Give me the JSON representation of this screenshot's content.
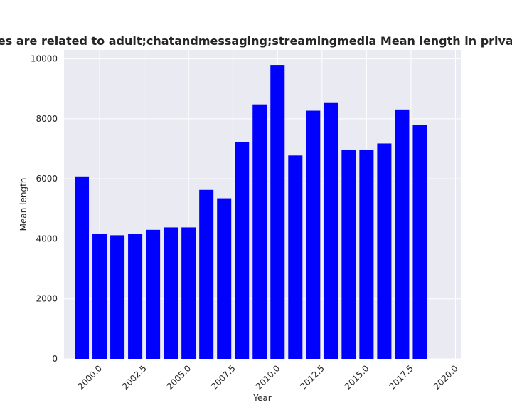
{
  "chart_data": {
    "type": "bar",
    "title": "Categories are related to adult;chatandmessaging;streamingmedia Mean length in privacy policies",
    "xlabel": "Year",
    "ylabel": "Mean length",
    "x": [
      1999,
      2000,
      2001,
      2002,
      2003,
      2004,
      2005,
      2006,
      2007,
      2008,
      2009,
      2010,
      2011,
      2012,
      2013,
      2014,
      2015,
      2016,
      2017,
      2018
    ],
    "values": [
      6080,
      4160,
      4120,
      4160,
      4300,
      4380,
      4380,
      5630,
      5350,
      7220,
      8480,
      9800,
      6780,
      8270,
      8550,
      6960,
      6960,
      7180,
      8310,
      7790
    ],
    "xlim": [
      1998.0,
      2020.3
    ],
    "ylim": [
      0,
      10300
    ],
    "xticks": [
      2000.0,
      2002.5,
      2005.0,
      2007.5,
      2010.0,
      2012.5,
      2015.0,
      2017.5,
      2020.0
    ],
    "xtick_labels": [
      "2000.0",
      "2002.5",
      "2005.0",
      "2007.5",
      "2010.0",
      "2012.5",
      "2015.0",
      "2017.5",
      "2020.0"
    ],
    "yticks": [
      0,
      2000,
      4000,
      6000,
      8000,
      10000
    ],
    "ytick_labels": [
      "0",
      "2000",
      "4000",
      "6000",
      "8000",
      "10000"
    ],
    "grid": true,
    "colors": {
      "bar": "#0000ff",
      "plot_background": "#eaeaf2",
      "grid": "#ffffff",
      "text": "#262626"
    }
  }
}
